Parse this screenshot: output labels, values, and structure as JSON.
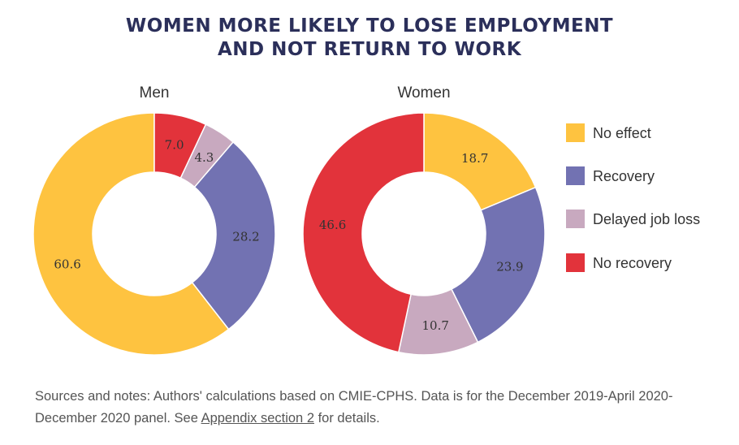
{
  "title_line1": "WOMEN MORE LIKELY TO LOSE EMPLOYMENT",
  "title_line2": "AND NOT RETURN TO WORK",
  "chart_data": {
    "type": "pie",
    "variant": "donut",
    "categories": [
      "No effect",
      "Recovery",
      "Delayed job loss",
      "No recovery"
    ],
    "colors": {
      "No effect": "#fec340",
      "Recovery": "#7272b2",
      "Delayed job loss": "#c8a9bf",
      "No recovery": "#e2333b"
    },
    "series": [
      {
        "name": "Men",
        "values": [
          60.6,
          28.2,
          4.3,
          7.0
        ],
        "labels": [
          "60.6",
          "28.2",
          "4.3",
          "7.0"
        ]
      },
      {
        "name": "Women",
        "values": [
          18.7,
          23.9,
          10.7,
          46.6
        ],
        "labels": [
          "18.7",
          "23.9",
          "10.7",
          "46.6"
        ]
      }
    ],
    "legend": [
      "No effect",
      "Recovery",
      "Delayed job loss",
      "No recovery"
    ],
    "legend_position": "right"
  },
  "sources": {
    "prefix": "Sources and notes: Authors' calculations based on CMIE-CPHS. Data is for the December 2019-April 2020-December 2020 panel. See ",
    "link_text": "Appendix section 2",
    "suffix": " for details."
  }
}
